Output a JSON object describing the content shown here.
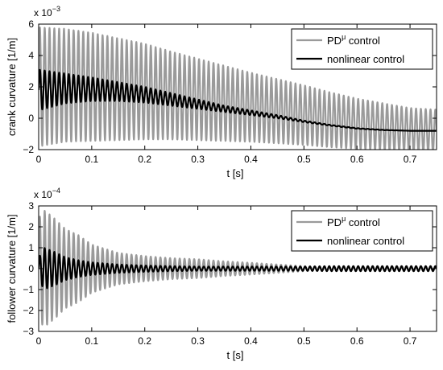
{
  "chart_data": [
    {
      "type": "line",
      "multiplier": "x 10",
      "multiplier_exp": "−3",
      "xlabel": "t  [s]",
      "ylabel": "crank curvature  [1/m]",
      "xlim": [
        0,
        0.75
      ],
      "ylim": [
        -2,
        6
      ],
      "xticks": [
        "0",
        "0.1",
        "0.2",
        "0.3",
        "0.4",
        "0.5",
        "0.6",
        "0.7"
      ],
      "xtick_values": [
        0,
        0.1,
        0.2,
        0.3,
        0.4,
        0.5,
        0.6,
        0.7
      ],
      "yticks": [
        "−2",
        "0",
        "2",
        "4",
        "6"
      ],
      "ytick_values": [
        -2,
        0,
        2,
        4,
        6
      ],
      "grid": false,
      "legend_position": "top-right",
      "series": [
        {
          "name_base": "PD",
          "name_sup": "μ",
          "name_rest": " control",
          "color": "#9a9a9a",
          "stroke_width": 2.2,
          "x": [
            0,
            0.05,
            0.1,
            0.15,
            0.2,
            0.25,
            0.3,
            0.35,
            0.4,
            0.45,
            0.5,
            0.55,
            0.6,
            0.65,
            0.7,
            0.75
          ],
          "center": [
            2.0,
            2.1,
            2.0,
            1.85,
            1.7,
            1.45,
            1.2,
            0.95,
            0.7,
            0.45,
            0.2,
            -0.1,
            -0.35,
            -0.55,
            -0.75,
            -0.8
          ],
          "amplitude": [
            3.8,
            3.6,
            3.45,
            3.25,
            3.05,
            2.8,
            2.6,
            2.4,
            2.2,
            2.05,
            1.9,
            1.75,
            1.6,
            1.5,
            1.4,
            1.35
          ],
          "cycles_per_second": 110
        },
        {
          "name": "nonlinear control",
          "color": "#000000",
          "stroke_width": 2.2,
          "x": [
            0,
            0.05,
            0.1,
            0.15,
            0.2,
            0.25,
            0.3,
            0.35,
            0.4,
            0.45,
            0.5,
            0.55,
            0.6,
            0.65,
            0.7,
            0.75
          ],
          "center": [
            1.8,
            1.9,
            1.85,
            1.7,
            1.5,
            1.2,
            0.9,
            0.6,
            0.35,
            0.1,
            -0.2,
            -0.45,
            -0.65,
            -0.75,
            -0.8,
            -0.8
          ],
          "amplitude": [
            1.3,
            0.95,
            0.75,
            0.6,
            0.5,
            0.4,
            0.3,
            0.2,
            0.15,
            0.1,
            0.05,
            0.03,
            0.02,
            0.01,
            0.0,
            0.0
          ],
          "cycles_per_second": 110
        }
      ]
    },
    {
      "type": "line",
      "multiplier": "x 10",
      "multiplier_exp": "−4",
      "xlabel": "t  [s]",
      "ylabel": "follower curvature  [1/m]",
      "xlim": [
        0,
        0.75
      ],
      "ylim": [
        -3,
        3
      ],
      "xticks": [
        "0",
        "0.1",
        "0.2",
        "0.3",
        "0.4",
        "0.5",
        "0.6",
        "0.7"
      ],
      "xtick_values": [
        0,
        0.1,
        0.2,
        0.3,
        0.4,
        0.5,
        0.6,
        0.7
      ],
      "yticks": [
        "−3",
        "−2",
        "−1",
        "0",
        "1",
        "2",
        "3"
      ],
      "ytick_values": [
        -3,
        -2,
        -1,
        0,
        1,
        2,
        3
      ],
      "grid": false,
      "legend_position": "top-right",
      "series": [
        {
          "name_base": "PD",
          "name_sup": "μ",
          "name_rest": " control",
          "color": "#9a9a9a",
          "stroke_width": 2.2,
          "x": [
            0,
            0.01,
            0.03,
            0.05,
            0.075,
            0.1,
            0.15,
            0.2,
            0.25,
            0.3,
            0.35,
            0.4,
            0.45,
            0.5,
            0.55,
            0.6,
            0.65,
            0.7,
            0.75
          ],
          "center": [
            0,
            0,
            0,
            0,
            0,
            0,
            0,
            0,
            0,
            0,
            0,
            0,
            0,
            0,
            0,
            0,
            0,
            0,
            0
          ],
          "amplitude": [
            2.4,
            2.8,
            2.4,
            1.9,
            1.6,
            1.15,
            0.75,
            0.6,
            0.5,
            0.45,
            0.35,
            0.28,
            0.2,
            0.12,
            0.08,
            0.05,
            0.04,
            0.03,
            0.03
          ],
          "cycles_per_second": 110
        },
        {
          "name": "nonlinear control",
          "color": "#000000",
          "stroke_width": 2.2,
          "x": [
            0,
            0.01,
            0.03,
            0.05,
            0.075,
            0.1,
            0.15,
            0.2,
            0.25,
            0.3,
            0.35,
            0.4,
            0.45,
            0.5,
            0.55,
            0.6,
            0.65,
            0.7,
            0.75
          ],
          "center": [
            0,
            0,
            0,
            0,
            0,
            0,
            0,
            0,
            0,
            0,
            0,
            0,
            0,
            0,
            0,
            0,
            0,
            0,
            0
          ],
          "amplitude": [
            0.5,
            1.0,
            0.8,
            0.55,
            0.4,
            0.3,
            0.2,
            0.15,
            0.12,
            0.1,
            0.1,
            0.1,
            0.1,
            0.1,
            0.12,
            0.12,
            0.12,
            0.12,
            0.12
          ],
          "cycles_per_second": 110
        }
      ]
    }
  ]
}
